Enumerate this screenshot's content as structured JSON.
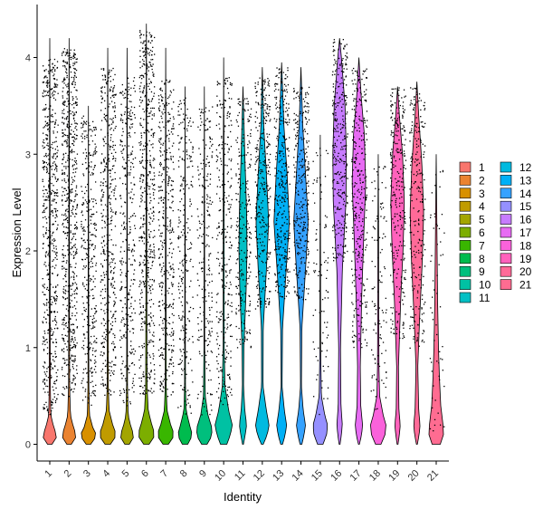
{
  "chart_data": {
    "type": "violin",
    "title": "",
    "xlabel": "Identity",
    "ylabel": "Expression Level",
    "ylim": [
      -0.2,
      4.4
    ],
    "yticks": [
      0,
      1,
      2,
      3,
      4
    ],
    "grid": false,
    "legend_position": "right",
    "legend_columns": 2,
    "categories": [
      "1",
      "2",
      "3",
      "4",
      "5",
      "6",
      "7",
      "8",
      "9",
      "10",
      "11",
      "12",
      "13",
      "14",
      "15",
      "16",
      "17",
      "18",
      "19",
      "20",
      "21"
    ],
    "colors": [
      "#F8766D",
      "#EA8331",
      "#D89000",
      "#C09B00",
      "#A3A500",
      "#7CAE00",
      "#39B600",
      "#00BB4E",
      "#00BF7D",
      "#00C1A3",
      "#00BFC4",
      "#00BAE0",
      "#00B0F6",
      "#35A2FF",
      "#9590FF",
      "#C77CFF",
      "#E76BF3",
      "#FA62DB",
      "#FF62BC",
      "#FF6A98",
      "#FF6C91"
    ],
    "series": [
      {
        "name": "1",
        "max": 4.2,
        "dens": [
          [
            0,
            0.25
          ],
          [
            0.05,
            0.6
          ],
          [
            0.1,
            0.9
          ],
          [
            0.15,
            0.5
          ],
          [
            0.3,
            0.12
          ],
          [
            0.6,
            0.06
          ],
          [
            1.5,
            0.04
          ],
          [
            2.5,
            0.03
          ],
          [
            3.5,
            0.02
          ],
          [
            4.2,
            0.0
          ]
        ],
        "spread": [
          0.3,
          4.0
        ],
        "n": 600
      },
      {
        "name": "2",
        "max": 4.2,
        "dens": [
          [
            0,
            0.25
          ],
          [
            0.05,
            0.6
          ],
          [
            0.1,
            0.9
          ],
          [
            0.15,
            0.55
          ],
          [
            0.3,
            0.15
          ],
          [
            0.6,
            0.06
          ],
          [
            1.5,
            0.04
          ],
          [
            2.5,
            0.03
          ],
          [
            3.5,
            0.02
          ],
          [
            4.2,
            0.0
          ]
        ],
        "spread": [
          0.5,
          4.1
        ],
        "n": 650
      },
      {
        "name": "3",
        "max": 3.5,
        "dens": [
          [
            0,
            0.25
          ],
          [
            0.05,
            0.65
          ],
          [
            0.1,
            0.9
          ],
          [
            0.15,
            0.55
          ],
          [
            0.3,
            0.12
          ],
          [
            0.6,
            0.05
          ],
          [
            1.5,
            0.03
          ],
          [
            2.5,
            0.02
          ],
          [
            3.5,
            0.0
          ]
        ],
        "spread": [
          0.4,
          3.4
        ],
        "n": 350
      },
      {
        "name": "4",
        "max": 4.1,
        "dens": [
          [
            0,
            0.3
          ],
          [
            0.05,
            0.7
          ],
          [
            0.1,
            0.95
          ],
          [
            0.2,
            0.55
          ],
          [
            0.35,
            0.15
          ],
          [
            0.6,
            0.06
          ],
          [
            1.5,
            0.04
          ],
          [
            2.5,
            0.03
          ],
          [
            3.5,
            0.02
          ],
          [
            4.1,
            0.0
          ]
        ],
        "spread": [
          0.5,
          3.9
        ],
        "n": 450
      },
      {
        "name": "5",
        "max": 4.1,
        "dens": [
          [
            0,
            0.25
          ],
          [
            0.05,
            0.6
          ],
          [
            0.1,
            0.85
          ],
          [
            0.15,
            0.5
          ],
          [
            0.3,
            0.12
          ],
          [
            0.6,
            0.05
          ],
          [
            1.5,
            0.03
          ],
          [
            2.5,
            0.02
          ],
          [
            3.5,
            0.02
          ],
          [
            4.1,
            0.0
          ]
        ],
        "spread": [
          0.4,
          3.8
        ],
        "n": 350
      },
      {
        "name": "6",
        "max": 4.35,
        "dens": [
          [
            0,
            0.3
          ],
          [
            0.05,
            0.7
          ],
          [
            0.1,
            0.95
          ],
          [
            0.2,
            0.6
          ],
          [
            0.35,
            0.2
          ],
          [
            0.6,
            0.08
          ],
          [
            1.5,
            0.05
          ],
          [
            2.5,
            0.04
          ],
          [
            3.5,
            0.03
          ],
          [
            4.35,
            0.0
          ]
        ],
        "spread": [
          0.5,
          4.3
        ],
        "n": 550
      },
      {
        "name": "7",
        "max": 4.1,
        "dens": [
          [
            0,
            0.3
          ],
          [
            0.05,
            0.7
          ],
          [
            0.1,
            0.95
          ],
          [
            0.2,
            0.55
          ],
          [
            0.35,
            0.15
          ],
          [
            0.6,
            0.05
          ],
          [
            1.5,
            0.04
          ],
          [
            2.5,
            0.03
          ],
          [
            3.5,
            0.02
          ],
          [
            4.1,
            0.0
          ]
        ],
        "spread": [
          0.5,
          3.8
        ],
        "n": 420
      },
      {
        "name": "8",
        "max": 3.7,
        "dens": [
          [
            0,
            0.3
          ],
          [
            0.05,
            0.6
          ],
          [
            0.1,
            0.8
          ],
          [
            0.2,
            0.5
          ],
          [
            0.35,
            0.12
          ],
          [
            0.6,
            0.05
          ],
          [
            1.5,
            0.03
          ],
          [
            2.5,
            0.02
          ],
          [
            3.7,
            0.0
          ]
        ],
        "spread": [
          0.3,
          3.6
        ],
        "n": 260
      },
      {
        "name": "9",
        "max": 3.7,
        "dens": [
          [
            0,
            0.3
          ],
          [
            0.05,
            0.65
          ],
          [
            0.15,
            0.9
          ],
          [
            0.3,
            0.4
          ],
          [
            0.5,
            0.1
          ],
          [
            1.0,
            0.04
          ],
          [
            2.0,
            0.03
          ],
          [
            3.0,
            0.02
          ],
          [
            3.7,
            0.0
          ]
        ],
        "spread": [
          0.3,
          3.5
        ],
        "n": 240
      },
      {
        "name": "10",
        "max": 4.0,
        "dens": [
          [
            0,
            0.35
          ],
          [
            0.1,
            0.75
          ],
          [
            0.2,
            0.95
          ],
          [
            0.35,
            0.55
          ],
          [
            0.6,
            0.15
          ],
          [
            1.0,
            0.06
          ],
          [
            2.0,
            0.05
          ],
          [
            3.0,
            0.04
          ],
          [
            4.0,
            0.0
          ]
        ],
        "spread": [
          0.4,
          3.8
        ],
        "n": 320
      },
      {
        "name": "11",
        "max": 3.7,
        "dens": [
          [
            0,
            0.05
          ],
          [
            0.1,
            0.25
          ],
          [
            0.2,
            0.4
          ],
          [
            0.35,
            0.2
          ],
          [
            0.6,
            0.06
          ],
          [
            1.0,
            0.1
          ],
          [
            1.6,
            0.35
          ],
          [
            2.0,
            0.45
          ],
          [
            2.4,
            0.4
          ],
          [
            3.0,
            0.2
          ],
          [
            3.7,
            0.0
          ]
        ],
        "spread": [
          1.0,
          3.6
        ],
        "n": 260
      },
      {
        "name": "12",
        "max": 3.9,
        "dens": [
          [
            0,
            0.1
          ],
          [
            0.1,
            0.55
          ],
          [
            0.2,
            0.75
          ],
          [
            0.35,
            0.45
          ],
          [
            0.6,
            0.08
          ],
          [
            1.2,
            0.1
          ],
          [
            1.8,
            0.45
          ],
          [
            2.3,
            0.7
          ],
          [
            2.8,
            0.45
          ],
          [
            3.3,
            0.15
          ],
          [
            3.9,
            0.0
          ]
        ],
        "spread": [
          1.4,
          3.8
        ],
        "n": 320
      },
      {
        "name": "13",
        "max": 3.95,
        "dens": [
          [
            0,
            0.1
          ],
          [
            0.1,
            0.4
          ],
          [
            0.2,
            0.55
          ],
          [
            0.35,
            0.3
          ],
          [
            0.6,
            0.05
          ],
          [
            1.2,
            0.1
          ],
          [
            1.8,
            0.5
          ],
          [
            2.3,
            0.85
          ],
          [
            2.8,
            0.6
          ],
          [
            3.3,
            0.25
          ],
          [
            3.95,
            0.0
          ]
        ],
        "spread": [
          1.5,
          3.9
        ],
        "n": 340
      },
      {
        "name": "14",
        "max": 3.9,
        "dens": [
          [
            0,
            0.1
          ],
          [
            0.1,
            0.35
          ],
          [
            0.2,
            0.5
          ],
          [
            0.35,
            0.25
          ],
          [
            0.6,
            0.05
          ],
          [
            1.2,
            0.1
          ],
          [
            1.8,
            0.5
          ],
          [
            2.3,
            0.8
          ],
          [
            2.8,
            0.5
          ],
          [
            3.3,
            0.2
          ],
          [
            3.9,
            0.0
          ]
        ],
        "spread": [
          1.5,
          3.7
        ],
        "n": 300
      },
      {
        "name": "15",
        "max": 3.2,
        "dens": [
          [
            0,
            0.3
          ],
          [
            0.1,
            0.7
          ],
          [
            0.2,
            0.8
          ],
          [
            0.3,
            0.5
          ],
          [
            0.5,
            0.12
          ],
          [
            1.0,
            0.04
          ],
          [
            2.0,
            0.03
          ],
          [
            3.2,
            0.0
          ]
        ],
        "spread": [
          0.3,
          3.1
        ],
        "n": 90
      },
      {
        "name": "16",
        "max": 4.2,
        "dens": [
          [
            0,
            0.05
          ],
          [
            0.1,
            0.2
          ],
          [
            0.2,
            0.3
          ],
          [
            0.4,
            0.15
          ],
          [
            1.0,
            0.1
          ],
          [
            1.8,
            0.3
          ],
          [
            2.5,
            0.7
          ],
          [
            3.0,
            0.75
          ],
          [
            3.5,
            0.6
          ],
          [
            4.0,
            0.2
          ],
          [
            4.2,
            0.0
          ]
        ],
        "spread": [
          1.9,
          4.2
        ],
        "n": 320
      },
      {
        "name": "17",
        "max": 4.0,
        "dens": [
          [
            0,
            0.05
          ],
          [
            0.1,
            0.3
          ],
          [
            0.2,
            0.4
          ],
          [
            0.4,
            0.2
          ],
          [
            0.8,
            0.15
          ],
          [
            1.5,
            0.3
          ],
          [
            2.2,
            0.55
          ],
          [
            2.7,
            0.75
          ],
          [
            3.2,
            0.6
          ],
          [
            3.6,
            0.25
          ],
          [
            4.0,
            0.0
          ]
        ],
        "spread": [
          1.0,
          3.9
        ],
        "n": 330
      },
      {
        "name": "18",
        "max": 3.0,
        "dens": [
          [
            0,
            0.3
          ],
          [
            0.1,
            0.75
          ],
          [
            0.2,
            0.85
          ],
          [
            0.3,
            0.55
          ],
          [
            0.5,
            0.15
          ],
          [
            0.8,
            0.08
          ],
          [
            1.5,
            0.05
          ],
          [
            2.2,
            0.04
          ],
          [
            3.0,
            0.0
          ]
        ],
        "spread": [
          0.3,
          2.9
        ],
        "n": 110
      },
      {
        "name": "19",
        "max": 3.7,
        "dens": [
          [
            0,
            0.05
          ],
          [
            0.1,
            0.2
          ],
          [
            0.2,
            0.3
          ],
          [
            0.35,
            0.15
          ],
          [
            0.8,
            0.1
          ],
          [
            1.5,
            0.35
          ],
          [
            2.0,
            0.6
          ],
          [
            2.5,
            0.75
          ],
          [
            3.0,
            0.55
          ],
          [
            3.4,
            0.2
          ],
          [
            3.7,
            0.0
          ]
        ],
        "spread": [
          1.1,
          3.7
        ],
        "n": 280
      },
      {
        "name": "20",
        "max": 3.75,
        "dens": [
          [
            0,
            0.05
          ],
          [
            0.1,
            0.25
          ],
          [
            0.2,
            0.35
          ],
          [
            0.35,
            0.2
          ],
          [
            0.8,
            0.1
          ],
          [
            1.3,
            0.3
          ],
          [
            1.9,
            0.6
          ],
          [
            2.4,
            0.75
          ],
          [
            2.9,
            0.55
          ],
          [
            3.4,
            0.2
          ],
          [
            3.75,
            0.0
          ]
        ],
        "spread": [
          1.0,
          3.7
        ],
        "n": 240
      },
      {
        "name": "21",
        "max": 3.0,
        "dens": [
          [
            0,
            0.45
          ],
          [
            0.1,
            0.8
          ],
          [
            0.2,
            0.75
          ],
          [
            0.4,
            0.5
          ],
          [
            0.7,
            0.35
          ],
          [
            1.0,
            0.25
          ],
          [
            1.5,
            0.15
          ],
          [
            2.2,
            0.08
          ],
          [
            3.0,
            0.0
          ]
        ],
        "spread": [
          0.1,
          2.9
        ],
        "n": 60
      }
    ]
  }
}
